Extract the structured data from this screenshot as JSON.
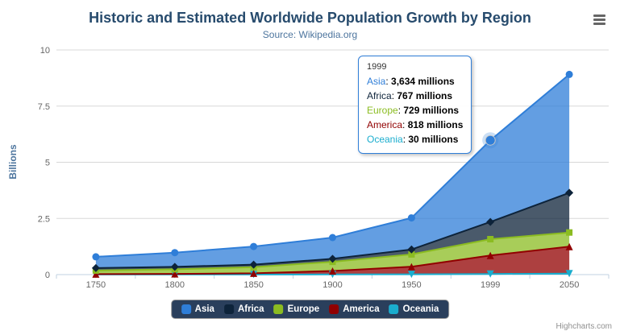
{
  "credits": "Highcharts.com",
  "tooltip": {
    "header": "1999",
    "rows": [
      {
        "name": "Asia",
        "color": "#2f7ed8",
        "value": "3,634 millions"
      },
      {
        "name": "Africa",
        "color": "#0d233a",
        "value": "767 millions"
      },
      {
        "name": "Europe",
        "color": "#8bbc21",
        "value": "729 millions"
      },
      {
        "name": "America",
        "color": "#910000",
        "value": "818 millions"
      },
      {
        "name": "Oceania",
        "color": "#1aadce",
        "value": "30 millions"
      }
    ]
  },
  "chart_data": {
    "type": "area",
    "stacking": "normal",
    "title": "Historic and Estimated Worldwide Population Growth by Region",
    "subtitle": "Source: Wikipedia.org",
    "xlabel": "",
    "ylabel": "Billions",
    "ylim": [
      0,
      10
    ],
    "yticks": [
      0,
      2.5,
      5,
      7.5,
      10
    ],
    "ytick_labels": [
      "0",
      "2.5",
      "5",
      "7.5",
      "10"
    ],
    "categories": [
      "1750",
      "1800",
      "1850",
      "1900",
      "1950",
      "1999",
      "2050"
    ],
    "values_unit": "millions",
    "grid": true,
    "legend_position": "bottom",
    "stack_order_bottom_to_top": [
      "Oceania",
      "America",
      "Europe",
      "Africa",
      "Asia"
    ],
    "highlight": {
      "series": "Asia",
      "category": "1999"
    },
    "series": [
      {
        "name": "Asia",
        "color": "#2f7ed8",
        "marker": "circle",
        "values": [
          502,
          635,
          809,
          947,
          1402,
          3634,
          5268
        ]
      },
      {
        "name": "Africa",
        "color": "#0d233a",
        "marker": "diamond",
        "values": [
          106,
          107,
          111,
          133,
          221,
          767,
          1766
        ]
      },
      {
        "name": "Europe",
        "color": "#8bbc21",
        "marker": "square",
        "values": [
          163,
          203,
          276,
          408,
          547,
          729,
          628
        ]
      },
      {
        "name": "America",
        "color": "#910000",
        "marker": "triangle",
        "values": [
          18,
          31,
          54,
          156,
          339,
          818,
          1201
        ]
      },
      {
        "name": "Oceania",
        "color": "#1aadce",
        "marker": "triangle-down",
        "values": [
          2,
          2,
          2,
          6,
          13,
          30,
          46
        ]
      }
    ]
  }
}
